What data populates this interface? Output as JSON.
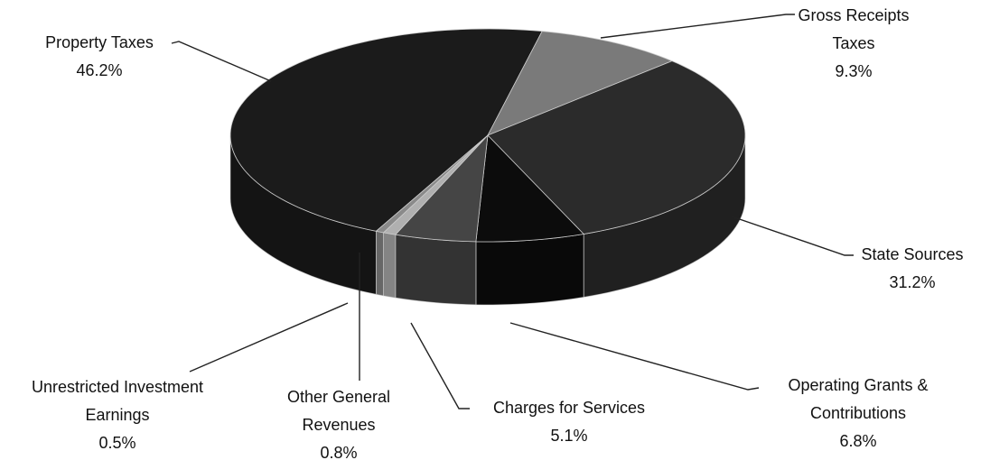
{
  "chart_data": {
    "type": "pie",
    "categories": [
      "Property Taxes",
      "Gross Receipts Taxes",
      "State Sources",
      "Operating Grants & Contributions",
      "Charges for Services",
      "Other General Revenues",
      "Unrestricted Investment Earnings"
    ],
    "values": [
      46.2,
      9.3,
      31.2,
      6.8,
      5.1,
      0.8,
      0.5
    ],
    "value_labels": [
      "46.2%",
      "9.3%",
      "31.2%",
      "6.8%",
      "5.1%",
      "0.8%",
      "0.5%"
    ],
    "colors": [
      "#1b1b1b",
      "#7a7a7a",
      "#2b2b2b",
      "#0c0c0c",
      "#454545",
      "#b0b0b0",
      "#8a8a8a"
    ]
  }
}
